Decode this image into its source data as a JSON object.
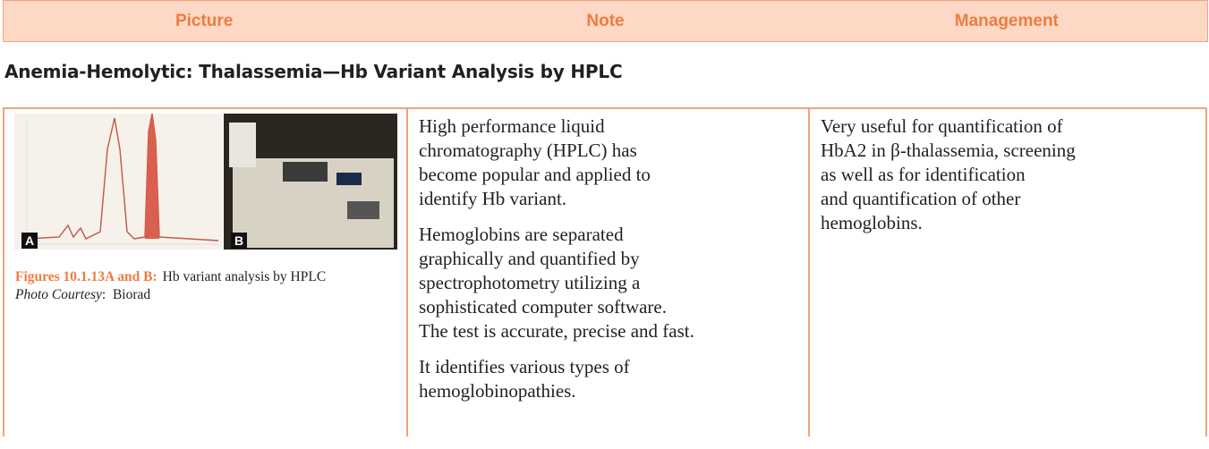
{
  "header": {
    "columns": [
      "Picture",
      "Note",
      "Management"
    ]
  },
  "title": "Anemia-Hemolytic: Thalassemia—Hb Variant Analysis by HPLC",
  "picture": {
    "image_labels": [
      "A",
      "B"
    ],
    "caption": {
      "label": "Figures 10.1.13A and B:",
      "text": "Hb variant analysis by HPLC",
      "courtesy_label": "Photo Courtesy",
      "courtesy_value": "Biorad"
    }
  },
  "note": {
    "paragraphs": [
      [
        "High performance liquid",
        "chromatography (HPLC) has",
        "become popular and applied to",
        "identify Hb variant."
      ],
      [
        "Hemoglobins are separated",
        "graphically and quantified by",
        "spectrophotometry utilizing a",
        "sophisticated computer software.",
        "The test is accurate, precise and fast."
      ],
      [
        "It identifies various types of",
        "hemoglobinopathies."
      ]
    ]
  },
  "management": {
    "lines": [
      "Very useful for quantification of",
      "HbA2 in β-thalassemia, screening",
      "as well as for identification",
      "and quantification of other",
      "hemoglobins."
    ]
  }
}
